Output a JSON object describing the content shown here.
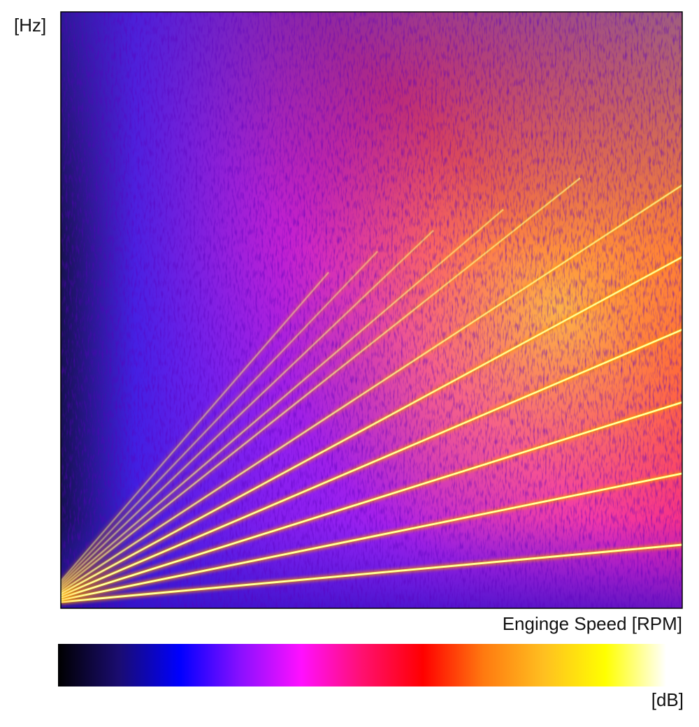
{
  "chart_data": {
    "type": "spectrogram",
    "y_label": "[Hz]",
    "x_label": "Enginge Speed [RPM]",
    "colorbar_label": "[dB]",
    "colormap": [
      "#000000",
      "#1a0c70",
      "#0000ff",
      "#8a10ff",
      "#ff10ff",
      "#ff1070",
      "#ff0000",
      "#ff7a10",
      "#ffc020",
      "#ffff00",
      "#ffffff"
    ]
  }
}
